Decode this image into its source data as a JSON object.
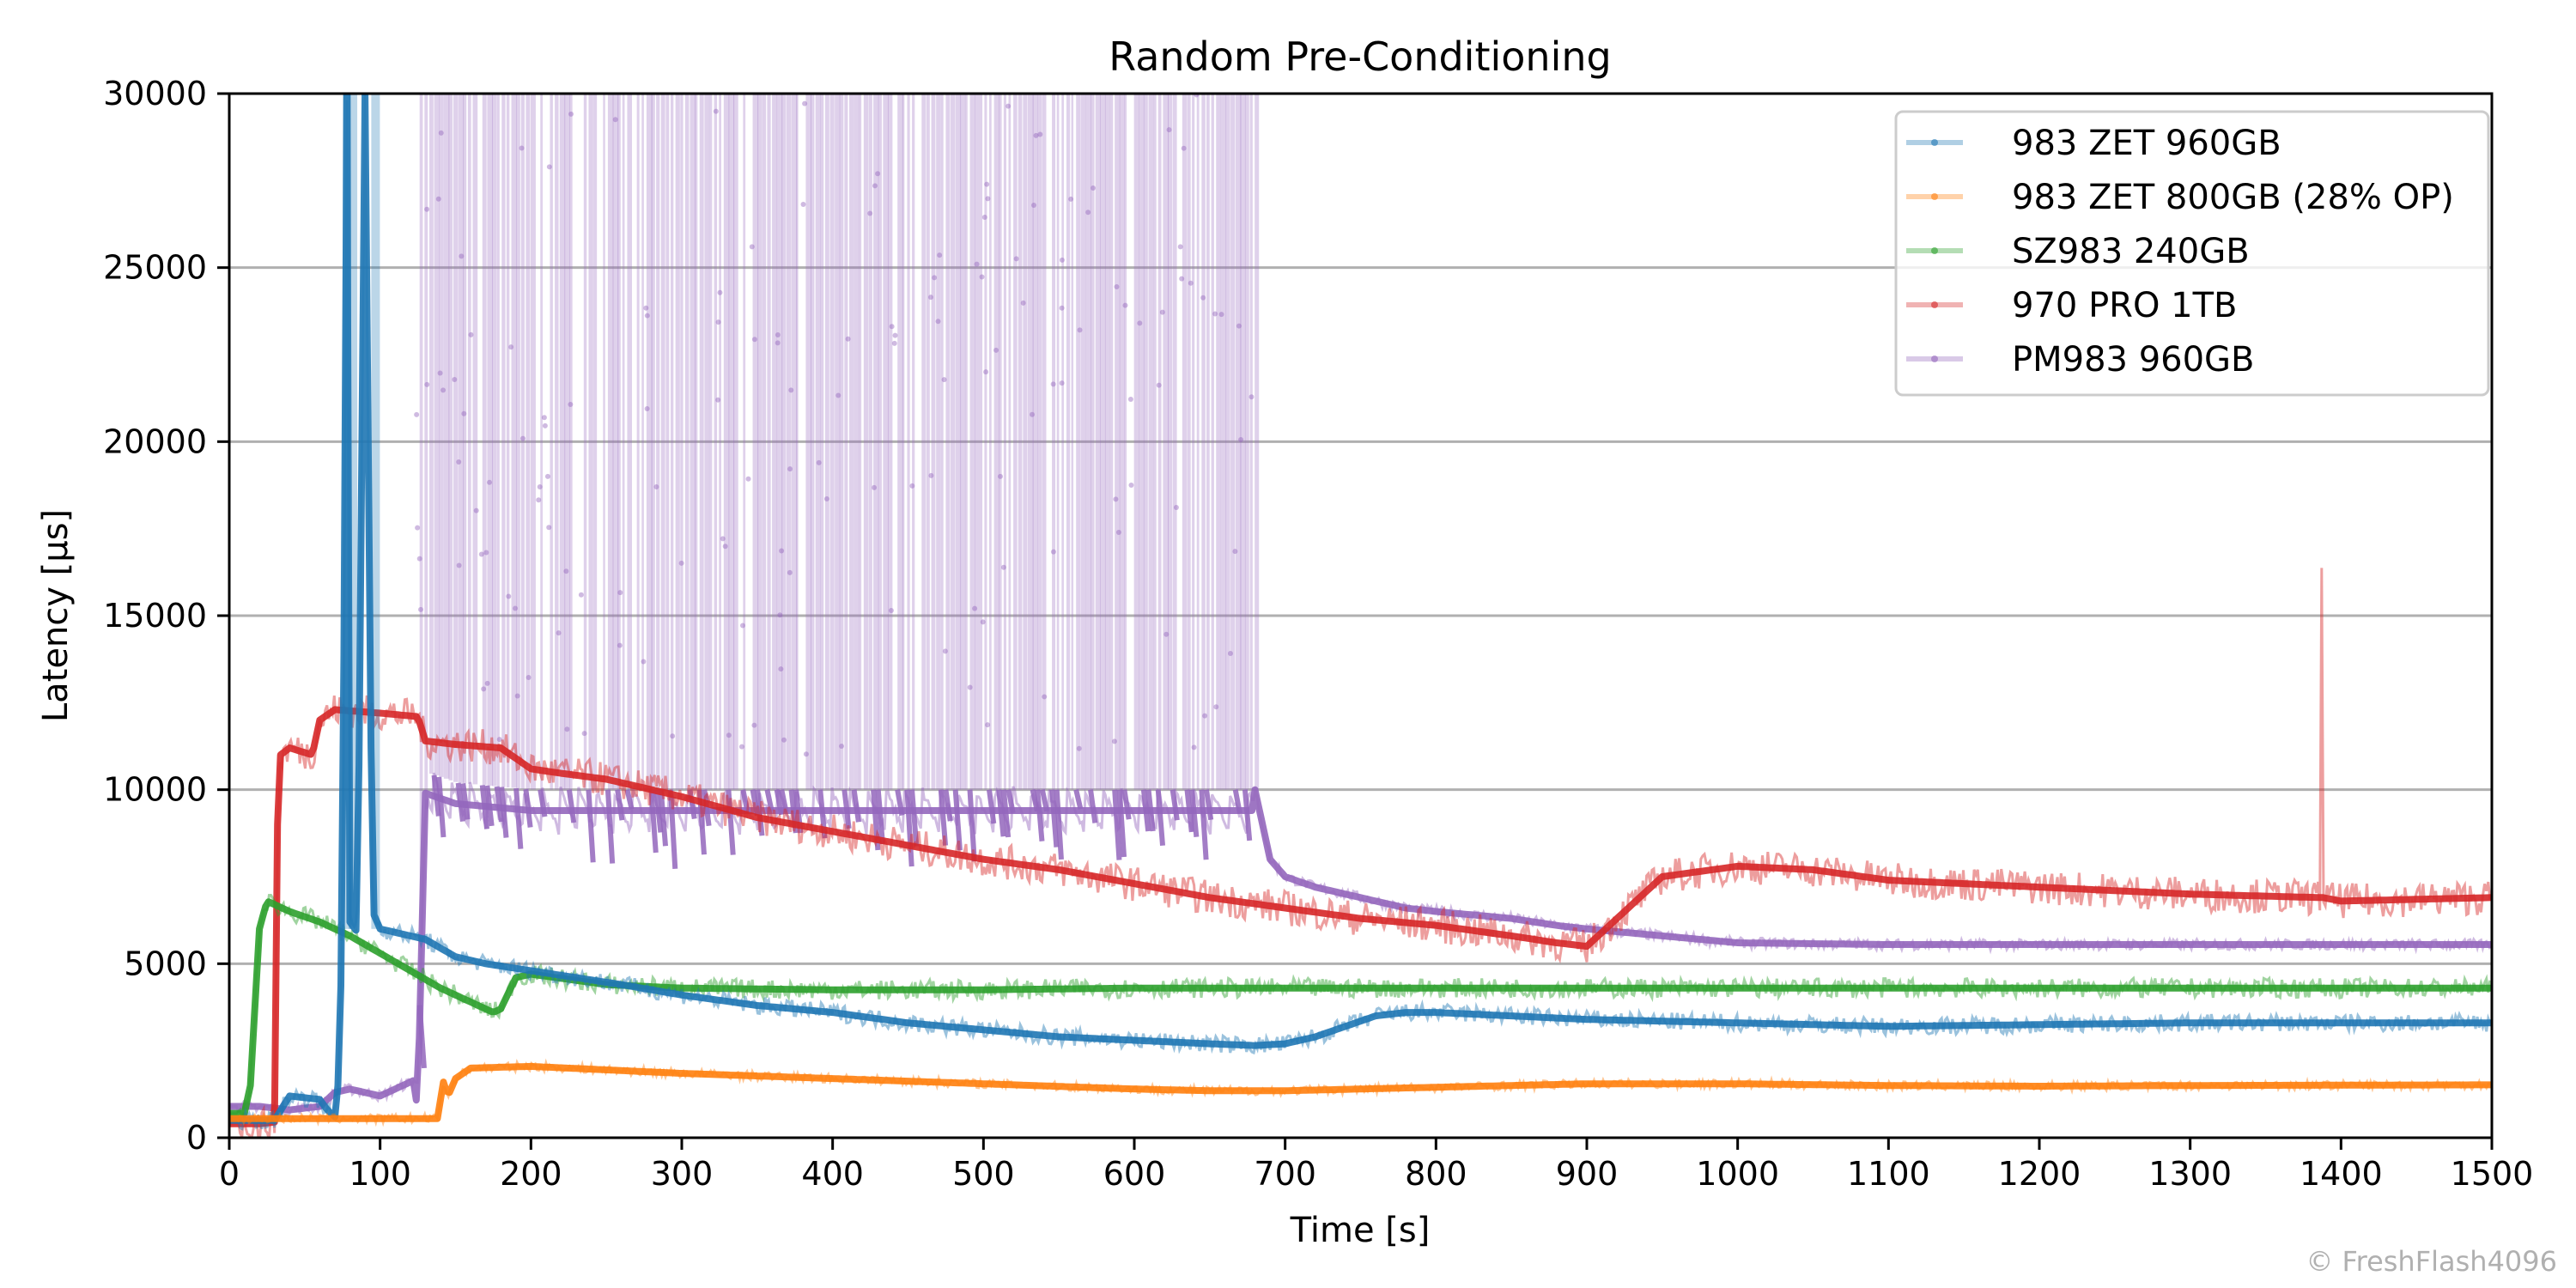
{
  "chart_data": {
    "type": "line",
    "title": "Random Pre-Conditioning",
    "xlabel": "Time [s]",
    "ylabel": "Latency [µs]",
    "xlim": [
      0,
      1500
    ],
    "ylim": [
      0,
      30000
    ],
    "xticks": [
      0,
      100,
      200,
      300,
      400,
      500,
      600,
      700,
      800,
      900,
      1000,
      1100,
      1200,
      1300,
      1400,
      1500
    ],
    "yticks": [
      0,
      5000,
      10000,
      15000,
      20000,
      25000,
      30000
    ],
    "grid": "horizontal",
    "legend_position": "top-right",
    "watermark": "© FreshFlash4096",
    "series": [
      {
        "name": "983 ZET 960GB",
        "color": "#1f77b4",
        "x": [
          0,
          10,
          20,
          30,
          40,
          60,
          65,
          70,
          72,
          75,
          78,
          80,
          85,
          90,
          95,
          100,
          110,
          130,
          150,
          170,
          200,
          230,
          260,
          300,
          350,
          400,
          450,
          500,
          550,
          600,
          650,
          680,
          700,
          720,
          740,
          760,
          780,
          800,
          850,
          900,
          950,
          1000,
          1100,
          1200,
          1300,
          1400,
          1500
        ],
        "y": [
          500,
          500,
          500,
          500,
          1200,
          1100,
          800,
          600,
          1500,
          5800,
          30000,
          6200,
          5900,
          30000,
          6500,
          6000,
          5900,
          5700,
          5200,
          5000,
          4800,
          4600,
          4400,
          4100,
          3800,
          3600,
          3300,
          3100,
          2900,
          2800,
          2700,
          2650,
          2700,
          2900,
          3200,
          3500,
          3600,
          3600,
          3500,
          3400,
          3350,
          3300,
          3200,
          3250,
          3300,
          3300,
          3300
        ],
        "spikes": [
          {
            "x": 78,
            "y": 30000
          },
          {
            "x": 82,
            "y": 30000
          },
          {
            "x": 97,
            "y": 30000
          }
        ]
      },
      {
        "name": "983 ZET 800GB (28% OP)",
        "color": "#ff7f0e",
        "x": [
          0,
          30,
          60,
          100,
          138,
          142,
          145,
          150,
          160,
          200,
          250,
          300,
          400,
          500,
          600,
          650,
          700,
          800,
          900,
          1000,
          1100,
          1200,
          1300,
          1400,
          1500
        ],
        "y": [
          550,
          550,
          550,
          550,
          550,
          1600,
          1200,
          1700,
          2000,
          2050,
          1950,
          1850,
          1700,
          1550,
          1400,
          1350,
          1350,
          1450,
          1550,
          1550,
          1500,
          1480,
          1500,
          1510,
          1520
        ]
      },
      {
        "name": "SZ983 240GB",
        "color": "#2ca02c",
        "x": [
          0,
          10,
          14,
          16,
          20,
          25,
          30,
          40,
          60,
          80,
          100,
          120,
          140,
          160,
          175,
          180,
          190,
          200,
          250,
          300,
          400,
          500,
          600,
          700,
          800,
          900,
          1000,
          1100,
          1200,
          1300,
          1400,
          1500
        ],
        "y": [
          700,
          700,
          1500,
          3000,
          6000,
          6800,
          6700,
          6500,
          6200,
          5800,
          5300,
          4800,
          4300,
          3900,
          3600,
          3700,
          4600,
          4700,
          4400,
          4300,
          4250,
          4250,
          4300,
          4300,
          4300,
          4300,
          4300,
          4300,
          4300,
          4300,
          4300,
          4300
        ]
      },
      {
        "name": "970 PRO 1TB",
        "color": "#d62728",
        "x": [
          0,
          20,
          30,
          32,
          34,
          40,
          55,
          60,
          70,
          100,
          125,
          130,
          150,
          180,
          200,
          215,
          250,
          280,
          300,
          350,
          400,
          450,
          500,
          550,
          600,
          650,
          700,
          750,
          800,
          850,
          880,
          900,
          920,
          950,
          1000,
          1050,
          1100,
          1200,
          1300,
          1386,
          1387,
          1388,
          1400,
          1500
        ],
        "y": [
          400,
          400,
          450,
          9000,
          11000,
          11200,
          11000,
          12000,
          12300,
          12200,
          12100,
          11400,
          11300,
          11200,
          10600,
          10500,
          10300,
          10000,
          9800,
          9200,
          8800,
          8400,
          8000,
          7700,
          7300,
          6900,
          6600,
          6300,
          6100,
          5800,
          5600,
          5500,
          6300,
          7500,
          7800,
          7700,
          7400,
          7200,
          7000,
          6900,
          19000,
          6900,
          6800,
          6900
        ]
      },
      {
        "name": "PM983 960GB",
        "color": "#9467bd",
        "x": [
          0,
          20,
          40,
          60,
          70,
          80,
          90,
          100,
          110,
          120,
          125,
          130,
          150,
          200,
          250,
          300,
          350,
          400,
          450,
          500,
          550,
          600,
          650,
          680,
          690,
          700,
          720,
          740,
          760,
          780,
          800,
          850,
          880,
          900,
          950,
          1000,
          1100,
          1200,
          1300,
          1400,
          1500
        ],
        "y": [
          900,
          900,
          800,
          900,
          1300,
          1400,
          1300,
          1200,
          1400,
          1600,
          1700,
          10500,
          10200,
          10000,
          10000,
          10000,
          10000,
          10000,
          10000,
          10000,
          10000,
          10000,
          10000,
          10000,
          8000,
          7500,
          7200,
          7000,
          6800,
          6600,
          6500,
          6300,
          6100,
          6000,
          5800,
          5600,
          5550,
          5550,
          5550,
          5550,
          5550
        ],
        "spike_region": {
          "x_start": 123,
          "x_end": 680,
          "y_top": 30000
        }
      }
    ]
  }
}
